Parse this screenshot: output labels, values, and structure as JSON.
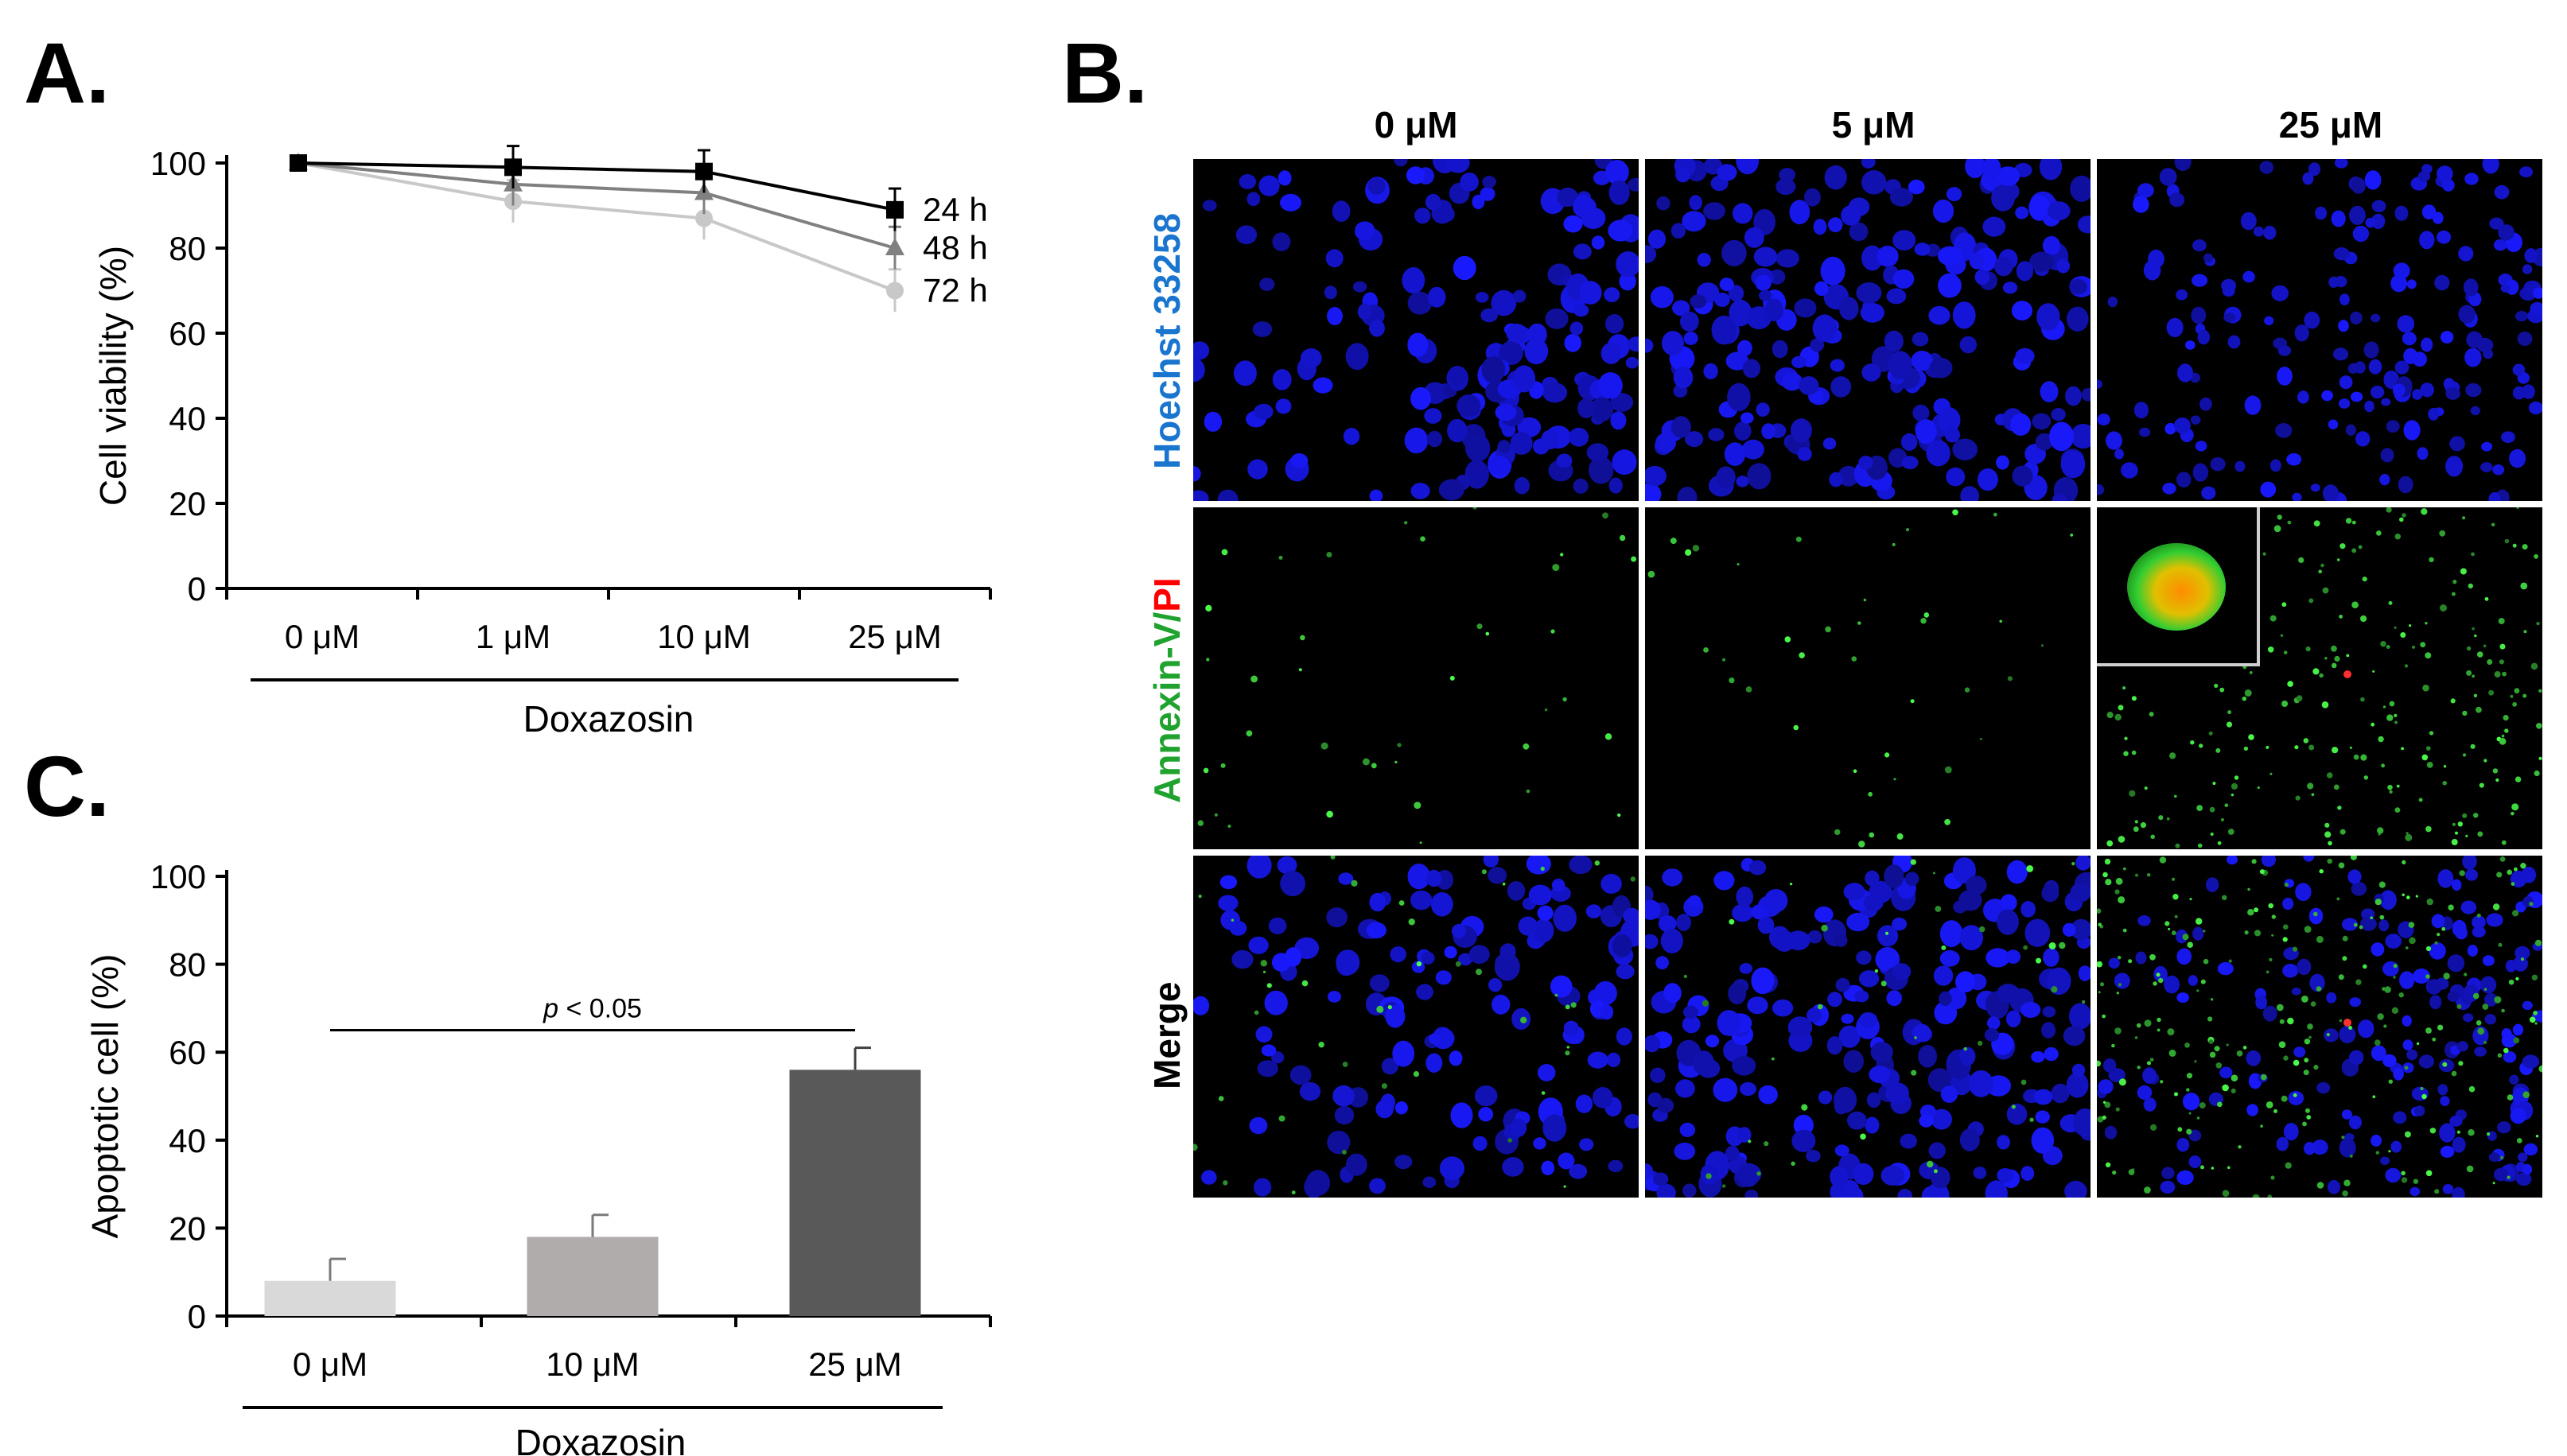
{
  "panels": {
    "a": "A.",
    "b": "B.",
    "c": "C."
  },
  "colors": {
    "series_24h": "#000000",
    "series_48h": "#808080",
    "series_72h": "#c8c8c8",
    "bar_0": "#d9d9d9",
    "bar_10": "#b0acab",
    "bar_25": "#595959",
    "hoechst_label": "#1a75cf",
    "annexin_label": "#1fa22e",
    "pi_label": "#ff0000"
  },
  "chart_data": [
    {
      "type": "line",
      "panel": "A.",
      "ylabel": "Cell viability (%)",
      "xlabel": "Doxazosin",
      "categories": [
        "0 μM",
        "1 μM",
        "10 μM",
        "25 μM"
      ],
      "ylim": [
        0,
        100
      ],
      "yticks": [
        0,
        20,
        40,
        60,
        80,
        100
      ],
      "series": [
        {
          "name": "24 h",
          "values": [
            100,
            99,
            98,
            89
          ],
          "errors": [
            0,
            5,
            5,
            5
          ],
          "marker": "square"
        },
        {
          "name": "48 h",
          "values": [
            100,
            95,
            93,
            80
          ],
          "errors": [
            0,
            5,
            5,
            5
          ],
          "marker": "triangle"
        },
        {
          "name": "72 h",
          "values": [
            100,
            91,
            87,
            70
          ],
          "errors": [
            0,
            5,
            5,
            5
          ],
          "marker": "circle"
        }
      ],
      "legend": "right, inline labels"
    },
    {
      "type": "bar",
      "panel": "C.",
      "ylabel": "Apoptotic cell (%)",
      "xlabel": "Doxazosin",
      "categories": [
        "0 μM",
        "10 μM",
        "25 μM"
      ],
      "values": [
        8,
        18,
        56
      ],
      "errors": [
        5,
        5,
        5
      ],
      "ylim": [
        0,
        100
      ],
      "yticks": [
        0,
        20,
        40,
        60,
        80,
        100
      ],
      "annotation": {
        "text_italic": "p",
        "text_rest": " < 0.05",
        "from_category": "0 μM",
        "to_category": "25 μM",
        "level": 65
      }
    }
  ],
  "microscopy": {
    "columns": [
      "0 μM",
      "5 μM",
      "25 μM"
    ],
    "rows": [
      {
        "key": "hoechst",
        "label": "Hoechst 33258"
      },
      {
        "key": "annexin",
        "label_green": "Annexin-V",
        "label_sep": "/",
        "label_red": "PI"
      },
      {
        "key": "merge",
        "label": "Merge"
      }
    ]
  }
}
